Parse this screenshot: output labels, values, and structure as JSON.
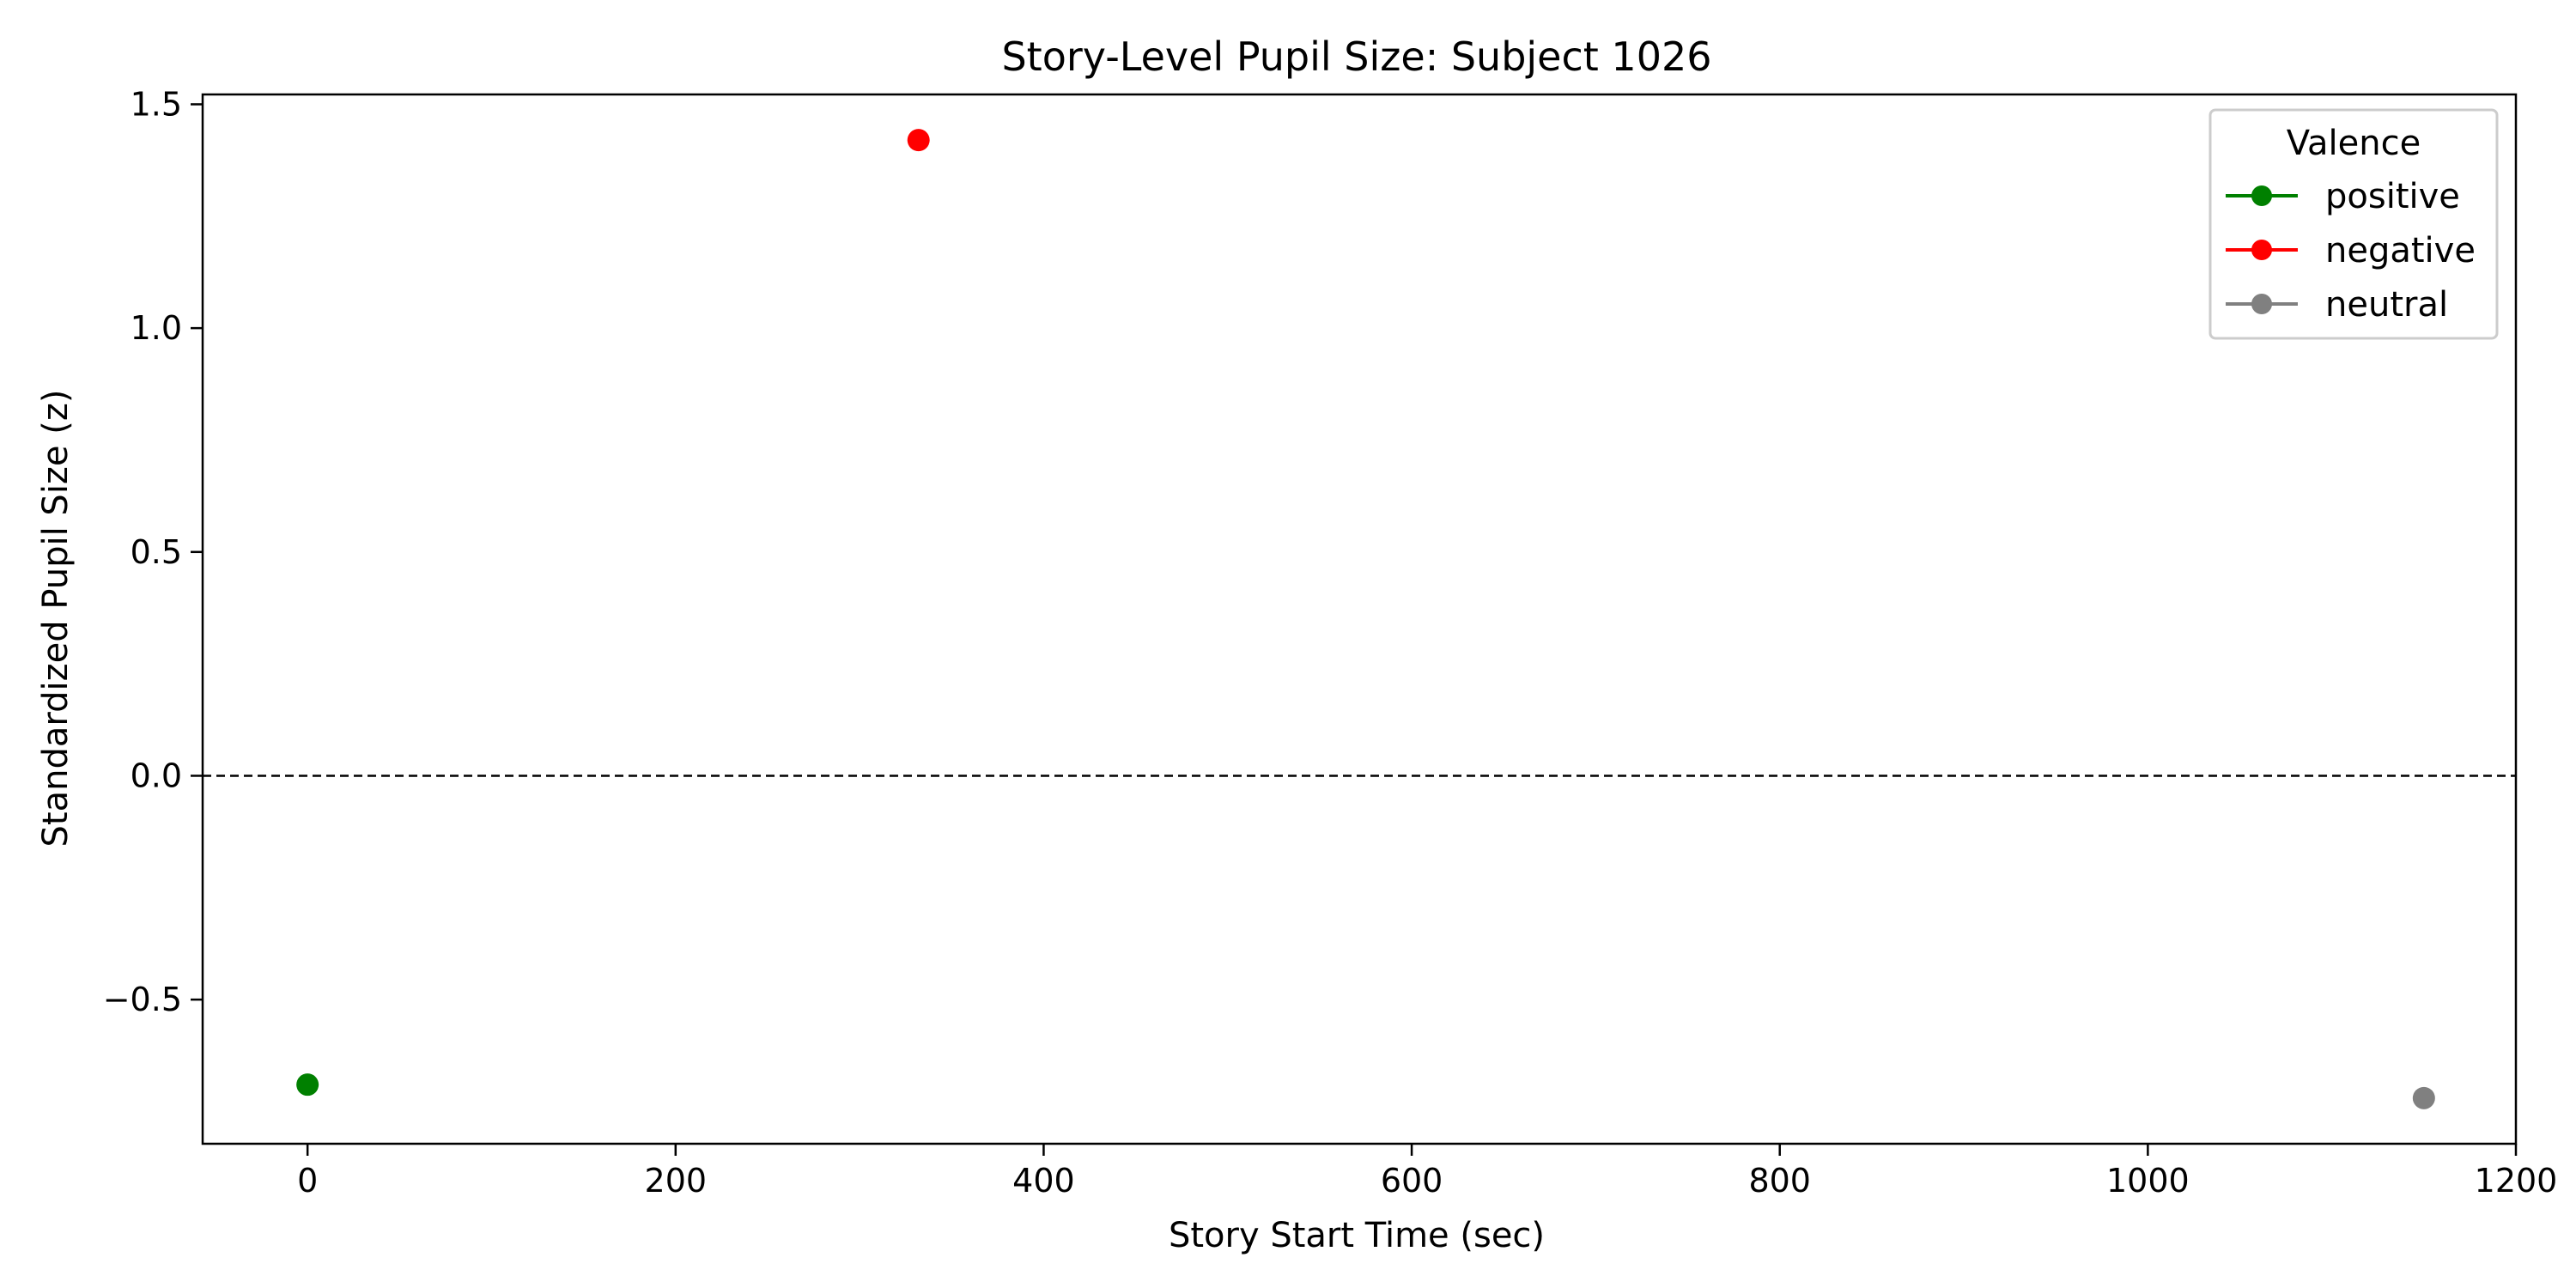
{
  "chart_data": {
    "type": "scatter",
    "title": "Story-Level Pupil Size: Subject 1026",
    "xlabel": "Story Start Time (sec)",
    "ylabel": "Standardized Pupil Size (z)",
    "xlim": [
      -57,
      1200
    ],
    "ylim": [
      -0.822,
      1.522
    ],
    "xticks": [
      0,
      200,
      400,
      600,
      800,
      1000,
      1200
    ],
    "xtick_labels": [
      "0",
      "200",
      "400",
      "600",
      "800",
      "1000",
      "1200"
    ],
    "yticks": [
      -0.5,
      0.0,
      0.5,
      1.0,
      1.5
    ],
    "ytick_labels": [
      "−0.5",
      "0.0",
      "0.5",
      "1.0",
      "1.5"
    ],
    "reference_line": {
      "y": 0.0,
      "style": "dashed",
      "color": "#000000"
    },
    "grid": false,
    "legend": {
      "title": "Valence",
      "placement": "top-right"
    },
    "series": [
      {
        "name": "positive",
        "color": "#008000",
        "points": [
          {
            "x": 0,
            "y": -0.69
          }
        ]
      },
      {
        "name": "negative",
        "color": "#ff0000",
        "points": [
          {
            "x": 332,
            "y": 1.42
          }
        ]
      },
      {
        "name": "neutral",
        "color": "#808080",
        "points": [
          {
            "x": 1150,
            "y": -0.72
          }
        ]
      }
    ]
  }
}
